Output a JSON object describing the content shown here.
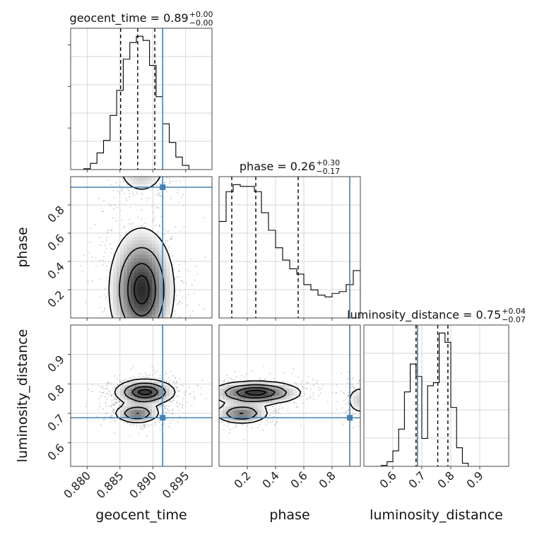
{
  "chart_data": {
    "type": "corner",
    "parameters": [
      "geocent_time",
      "phase",
      "luminosity_distance"
    ],
    "injection": {
      "geocent_time": 0.8915,
      "phase": 0.925,
      "luminosity_distance": 0.685
    },
    "accent_color": "#4682b4",
    "panels": [
      {
        "kind": "hist",
        "param": "geocent_time",
        "title": {
          "label": "geocent_time = 0.89",
          "plus": "+0.00",
          "minus": "−0.00"
        },
        "xlim": [
          0.8775,
          0.899
        ],
        "edges": [
          0.8795,
          0.8805,
          0.8815,
          0.8825,
          0.8835,
          0.8845,
          0.8855,
          0.8865,
          0.8875,
          0.8885,
          0.8895,
          0.8905,
          0.8915,
          0.8925,
          0.8935,
          0.8945,
          0.8955
        ],
        "counts": [
          0.4,
          3,
          8,
          14,
          26,
          38,
          53,
          61,
          64,
          62,
          50,
          35,
          22,
          13,
          6,
          2
        ],
        "quantiles": [
          0.8851,
          0.8877,
          0.8903
        ],
        "xticks": [
          0.88,
          0.885,
          0.89,
          0.895
        ],
        "xtick_labels": [
          "0.880",
          "0.885",
          "0.890",
          "0.895"
        ],
        "xlabel": "geocent_time"
      },
      {
        "kind": "hist",
        "param": "phase",
        "title": {
          "label": "phase = 0.26",
          "plus": "+0.30",
          "minus": "−0.17"
        },
        "xlim": [
          0.0,
          1.0
        ],
        "edges": [
          0,
          0.05,
          0.1,
          0.15,
          0.2,
          0.25,
          0.3,
          0.35,
          0.4,
          0.45,
          0.5,
          0.55,
          0.6,
          0.65,
          0.7,
          0.75,
          0.8,
          0.85,
          0.9,
          0.95,
          1.0
        ],
        "counts": [
          55,
          72,
          76,
          75,
          75,
          72,
          60,
          50,
          40,
          33,
          28,
          25,
          19,
          16,
          13,
          12,
          14,
          15,
          19,
          27
        ],
        "quantiles": [
          0.09,
          0.26,
          0.56
        ],
        "xticks": [
          0.2,
          0.4,
          0.6,
          0.8
        ],
        "xtick_labels": [
          "0.2",
          "0.4",
          "0.6",
          "0.8"
        ],
        "xlabel": "phase"
      },
      {
        "kind": "hist",
        "param": "luminosity_distance",
        "title": {
          "label": "luminosity_distance = 0.75",
          "plus": "+0.04",
          "minus": "−0.07"
        },
        "xlim": [
          0.5,
          1.0
        ],
        "edges": [
          0.56,
          0.58,
          0.6,
          0.62,
          0.64,
          0.66,
          0.68,
          0.7,
          0.72,
          0.74,
          0.76,
          0.78,
          0.8,
          0.82,
          0.84,
          0.86
        ],
        "counts": [
          0.3,
          1.5,
          5,
          12,
          24,
          33,
          29,
          9,
          26,
          27,
          43,
          40,
          19,
          6,
          1
        ],
        "quantiles": [
          0.68,
          0.755,
          0.79
        ],
        "xticks": [
          0.6,
          0.7,
          0.8,
          0.9
        ],
        "xtick_labels": [
          "0.6",
          "0.7",
          "0.8",
          "0.9"
        ],
        "xlabel": "luminosity_distance"
      },
      {
        "kind": "contour",
        "x": "geocent_time",
        "y": "phase",
        "xlim": [
          0.8775,
          0.899
        ],
        "ylim": [
          0.0,
          1.0
        ],
        "yticks": [
          0.2,
          0.4,
          0.6,
          0.8
        ],
        "ytick_labels": [
          "0.2",
          "0.4",
          "0.6",
          "0.8"
        ],
        "ylabel": "phase",
        "blobs": [
          {
            "cx": 0.8883,
            "cy": 0.2,
            "sx": 0.0025,
            "sy": 0.22,
            "w": 1.0
          },
          {
            "cx": 0.8883,
            "cy": 1.05,
            "sx": 0.0022,
            "sy": 0.1,
            "w": 0.35
          }
        ]
      },
      {
        "kind": "contour",
        "x": "geocent_time",
        "y": "luminosity_distance",
        "xlim": [
          0.8775,
          0.899
        ],
        "ylim": [
          0.52,
          1.0
        ],
        "yticks": [
          0.6,
          0.7,
          0.8,
          0.9
        ],
        "ytick_labels": [
          "0.6",
          "0.7",
          "0.8",
          "0.9"
        ],
        "ylabel": "luminosity_distance",
        "blobs": [
          {
            "cx": 0.8888,
            "cy": 0.772,
            "sx": 0.0023,
            "sy": 0.022,
            "w": 1.0
          },
          {
            "cx": 0.8876,
            "cy": 0.7,
            "sx": 0.0018,
            "sy": 0.017,
            "w": 0.7
          }
        ]
      },
      {
        "kind": "contour",
        "x": "phase",
        "y": "luminosity_distance",
        "xlim": [
          0.0,
          1.0
        ],
        "ylim": [
          0.52,
          1.0
        ],
        "blobs": [
          {
            "cx": 0.26,
            "cy": 0.77,
            "sx": 0.16,
            "sy": 0.02,
            "w": 1.0
          },
          {
            "cx": 0.16,
            "cy": 0.7,
            "sx": 0.1,
            "sy": 0.018,
            "w": 0.7
          },
          {
            "cx": 1.0,
            "cy": 0.745,
            "sx": 0.06,
            "sy": 0.03,
            "w": 0.3
          }
        ]
      }
    ]
  }
}
